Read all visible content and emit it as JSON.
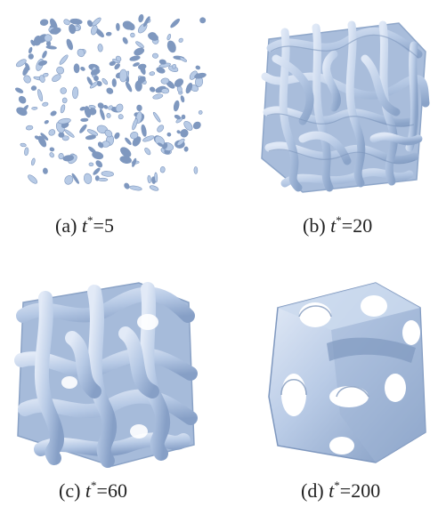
{
  "panels": [
    {
      "id": "a",
      "letter": "(a)",
      "var": "t",
      "sup": "*",
      "value": "=5"
    },
    {
      "id": "b",
      "letter": "(b)",
      "var": "t",
      "sup": "*",
      "value": "=20"
    },
    {
      "id": "c",
      "letter": "(c)",
      "var": "t",
      "sup": "*",
      "value": "=60"
    },
    {
      "id": "d",
      "letter": "(d)",
      "var": "t",
      "sup": "*",
      "value": "=200"
    }
  ],
  "colors": {
    "surface": "#b8cbe6",
    "surface_dark": "#7f98bf",
    "surface_light": "#e4ecf8"
  }
}
